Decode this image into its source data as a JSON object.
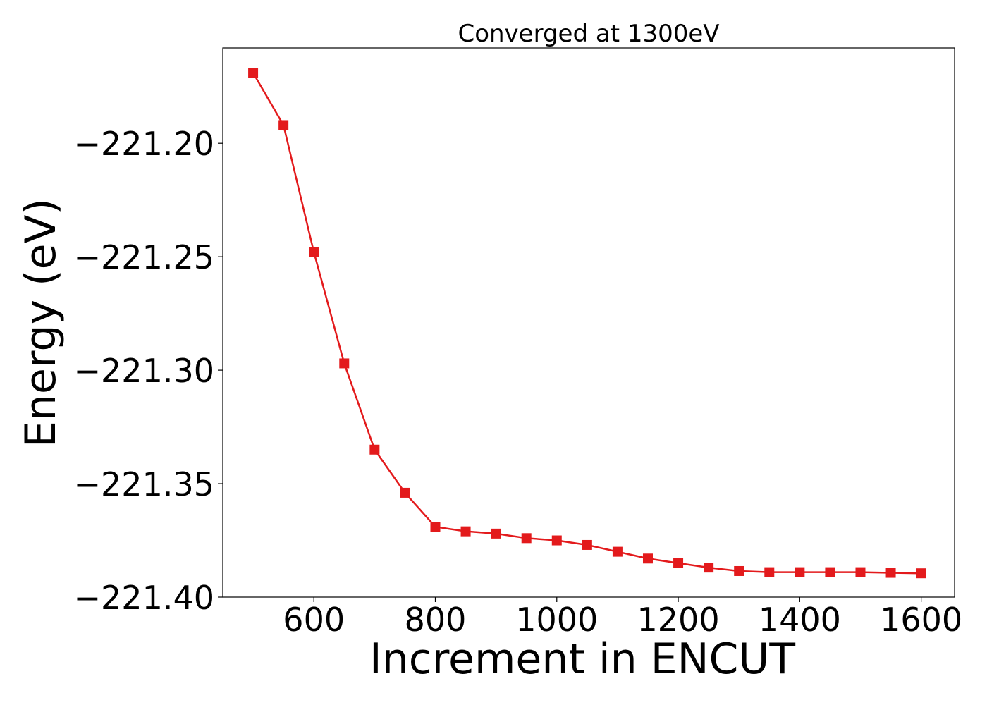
{
  "chart_data": {
    "type": "line",
    "title": "Converged at 1300eV",
    "xlabel": "Increment in ENCUT",
    "ylabel": "Energy (eV)",
    "xlim": [
      450,
      1655
    ],
    "ylim": [
      -221.4,
      -221.158
    ],
    "xticks": [
      600,
      800,
      1000,
      1200,
      1400,
      1600
    ],
    "xtick_labels": [
      "600",
      "800",
      "1000",
      "1200",
      "1400",
      "1600"
    ],
    "yticks": [
      -221.4,
      -221.35,
      -221.3,
      -221.25,
      -221.2
    ],
    "ytick_labels": [
      "−221.40",
      "−221.35",
      "−221.30",
      "−221.25",
      "−221.20"
    ],
    "grid": false,
    "legend": false,
    "color": "#e31a1c",
    "marker": "square",
    "series": [
      {
        "x": [
          500,
          550,
          600,
          650,
          700,
          750,
          800,
          850,
          900,
          950,
          1000,
          1050,
          1100,
          1150,
          1200,
          1250,
          1300,
          1350,
          1400,
          1450,
          1500,
          1550,
          1600
        ],
        "values": [
          -221.169,
          -221.192,
          -221.248,
          -221.297,
          -221.335,
          -221.354,
          -221.369,
          -221.371,
          -221.372,
          -221.374,
          -221.375,
          -221.377,
          -221.38,
          -221.383,
          -221.385,
          -221.387,
          -221.3885,
          -221.389,
          -221.389,
          -221.389,
          -221.389,
          -221.3893,
          -221.3895
        ]
      }
    ]
  }
}
